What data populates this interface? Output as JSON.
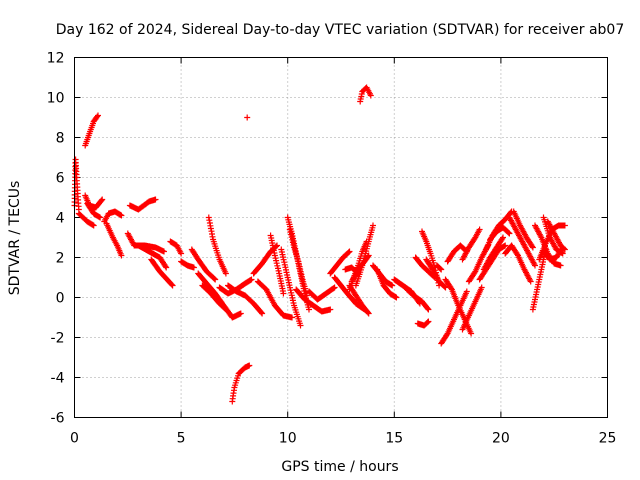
{
  "chart_data": {
    "type": "scatter",
    "title": "Day 162 of 2024, Sidereal Day-to-day VTEC variation (SDTVAR) for receiver ab07",
    "xlabel": "GPS time / hours",
    "ylabel": "SDTVAR / TECUs",
    "xlim": [
      0,
      25
    ],
    "ylim": [
      -6,
      12
    ],
    "xticks": [
      0,
      5,
      10,
      15,
      20,
      25
    ],
    "yticks": [
      -6,
      -4,
      -2,
      0,
      2,
      4,
      6,
      8,
      10,
      12
    ],
    "grid": true,
    "marker": "+",
    "series_color": "#ff0000",
    "track_segments": [
      [
        [
          0.0,
          4.6
        ],
        [
          0.05,
          6.9
        ],
        [
          0.1,
          6.0
        ],
        [
          0.2,
          4.4
        ]
      ],
      [
        [
          0.5,
          7.6
        ],
        [
          0.7,
          8.2
        ],
        [
          0.9,
          8.8
        ],
        [
          1.1,
          9.1
        ]
      ],
      [
        [
          0.5,
          5.1
        ],
        [
          0.7,
          4.6
        ],
        [
          1.0,
          4.5
        ],
        [
          1.3,
          4.9
        ]
      ],
      [
        [
          0.6,
          4.7
        ],
        [
          0.9,
          4.2
        ],
        [
          1.2,
          4.0
        ]
      ],
      [
        [
          0.2,
          4.2
        ],
        [
          0.6,
          3.8
        ],
        [
          0.9,
          3.6
        ]
      ],
      [
        [
          1.4,
          3.8
        ],
        [
          1.6,
          4.2
        ],
        [
          1.9,
          4.3
        ],
        [
          2.2,
          4.1
        ]
      ],
      [
        [
          1.5,
          3.7
        ],
        [
          1.8,
          3.0
        ],
        [
          2.0,
          2.6
        ],
        [
          2.2,
          2.1
        ]
      ],
      [
        [
          2.6,
          4.6
        ],
        [
          3.0,
          4.4
        ],
        [
          3.5,
          4.8
        ],
        [
          3.8,
          4.9
        ]
      ],
      [
        [
          2.5,
          3.2
        ],
        [
          2.8,
          2.6
        ],
        [
          3.3,
          2.6
        ],
        [
          3.8,
          2.5
        ],
        [
          4.2,
          2.3
        ]
      ],
      [
        [
          3.0,
          2.6
        ],
        [
          3.5,
          2.3
        ],
        [
          4.0,
          2.0
        ],
        [
          4.3,
          1.5
        ]
      ],
      [
        [
          3.6,
          1.9
        ],
        [
          4.0,
          1.3
        ],
        [
          4.6,
          0.6
        ]
      ],
      [
        [
          4.5,
          2.8
        ],
        [
          4.8,
          2.6
        ],
        [
          5.0,
          2.2
        ]
      ],
      [
        [
          5.0,
          1.8
        ],
        [
          5.3,
          1.6
        ],
        [
          5.6,
          1.5
        ]
      ],
      [
        [
          5.5,
          2.4
        ],
        [
          5.8,
          1.9
        ],
        [
          6.2,
          1.3
        ],
        [
          6.6,
          0.9
        ]
      ],
      [
        [
          6.3,
          4.0
        ],
        [
          6.5,
          2.9
        ],
        [
          6.8,
          1.9
        ],
        [
          7.1,
          1.2
        ]
      ],
      [
        [
          5.8,
          1.2
        ],
        [
          6.2,
          0.7
        ],
        [
          6.6,
          0.2
        ],
        [
          7.0,
          -0.4
        ],
        [
          7.4,
          -1.0
        ],
        [
          7.8,
          -0.8
        ]
      ],
      [
        [
          6.0,
          0.6
        ],
        [
          6.4,
          0.2
        ],
        [
          6.8,
          -0.3
        ],
        [
          7.2,
          -0.7
        ]
      ],
      [
        [
          6.8,
          0.5
        ],
        [
          7.2,
          0.2
        ],
        [
          7.6,
          0.4
        ],
        [
          8.0,
          0.7
        ],
        [
          8.3,
          0.9
        ]
      ],
      [
        [
          7.2,
          0.6
        ],
        [
          7.6,
          0.3
        ],
        [
          8.0,
          0.1
        ],
        [
          8.4,
          -0.3
        ],
        [
          8.8,
          -0.8
        ]
      ],
      [
        [
          7.4,
          -5.2
        ],
        [
          7.5,
          -4.5
        ],
        [
          7.7,
          -3.8
        ],
        [
          8.0,
          -3.5
        ],
        [
          8.2,
          -3.4
        ]
      ],
      [
        [
          8.1,
          9.0
        ],
        [
          8.1,
          9.0
        ]
      ],
      [
        [
          8.4,
          1.2
        ],
        [
          8.8,
          1.7
        ],
        [
          9.2,
          2.3
        ],
        [
          9.5,
          2.6
        ]
      ],
      [
        [
          9.2,
          3.1
        ],
        [
          9.4,
          2.1
        ],
        [
          9.6,
          1.2
        ],
        [
          9.8,
          0.2
        ]
      ],
      [
        [
          8.6,
          0.8
        ],
        [
          9.0,
          0.4
        ],
        [
          9.4,
          -0.4
        ],
        [
          9.8,
          -0.9
        ],
        [
          10.2,
          -1.0
        ]
      ],
      [
        [
          9.7,
          2.4
        ],
        [
          10.0,
          1.0
        ],
        [
          10.3,
          -0.4
        ],
        [
          10.6,
          -1.4
        ]
      ],
      [
        [
          10.0,
          4.0
        ],
        [
          10.2,
          3.2
        ],
        [
          10.4,
          2.2
        ],
        [
          10.6,
          1.2
        ],
        [
          10.8,
          0.2
        ],
        [
          11.0,
          -0.6
        ]
      ],
      [
        [
          10.1,
          3.4
        ],
        [
          10.3,
          2.5
        ],
        [
          10.5,
          1.8
        ],
        [
          10.7,
          0.9
        ],
        [
          10.9,
          0.1
        ]
      ],
      [
        [
          10.4,
          0.4
        ],
        [
          10.8,
          -0.1
        ],
        [
          11.2,
          -0.4
        ],
        [
          11.6,
          -0.7
        ],
        [
          12.0,
          -0.6
        ]
      ],
      [
        [
          11.0,
          0.3
        ],
        [
          11.4,
          -0.1
        ],
        [
          11.8,
          0.2
        ],
        [
          12.2,
          0.5
        ]
      ],
      [
        [
          12.2,
          1.0
        ],
        [
          12.5,
          0.6
        ],
        [
          12.8,
          0.2
        ],
        [
          13.2,
          -0.3
        ],
        [
          13.6,
          -0.6
        ]
      ],
      [
        [
          12.0,
          1.2
        ],
        [
          12.3,
          1.6
        ],
        [
          12.6,
          2.0
        ],
        [
          12.9,
          2.3
        ]
      ],
      [
        [
          12.9,
          0.4
        ],
        [
          13.1,
          1.0
        ],
        [
          13.3,
          1.6
        ],
        [
          13.5,
          2.3
        ],
        [
          13.7,
          2.8
        ]
      ],
      [
        [
          13.0,
          0.8
        ],
        [
          13.3,
          1.4
        ],
        [
          13.6,
          1.8
        ],
        [
          13.8,
          2.1
        ]
      ],
      [
        [
          13.2,
          0.6
        ],
        [
          13.5,
          1.6
        ],
        [
          13.8,
          2.8
        ],
        [
          14.0,
          3.6
        ]
      ],
      [
        [
          12.7,
          1.4
        ],
        [
          13.0,
          1.5
        ],
        [
          13.3,
          1.2
        ]
      ],
      [
        [
          12.9,
          0.6
        ],
        [
          13.2,
          0.1
        ],
        [
          13.5,
          -0.4
        ],
        [
          13.8,
          -0.8
        ]
      ],
      [
        [
          13.4,
          9.8
        ],
        [
          13.5,
          10.3
        ],
        [
          13.7,
          10.5
        ],
        [
          13.9,
          10.1
        ]
      ],
      [
        [
          14.0,
          1.6
        ],
        [
          14.3,
          1.2
        ],
        [
          14.6,
          0.8
        ],
        [
          14.9,
          0.6
        ]
      ],
      [
        [
          14.2,
          1.4
        ],
        [
          14.5,
          0.6
        ],
        [
          14.8,
          0.2
        ],
        [
          15.1,
          0.0
        ]
      ],
      [
        [
          15.0,
          0.9
        ],
        [
          15.4,
          0.6
        ],
        [
          15.8,
          0.3
        ],
        [
          16.2,
          -0.3
        ]
      ],
      [
        [
          15.6,
          0.4
        ],
        [
          15.9,
          0.1
        ],
        [
          16.3,
          -0.2
        ],
        [
          16.6,
          -0.6
        ]
      ],
      [
        [
          16.1,
          -1.3
        ],
        [
          16.4,
          -1.4
        ],
        [
          16.6,
          -1.2
        ]
      ],
      [
        [
          16.0,
          2.0
        ],
        [
          16.3,
          1.6
        ],
        [
          16.6,
          1.3
        ],
        [
          16.9,
          1.0
        ]
      ],
      [
        [
          16.3,
          3.3
        ],
        [
          16.5,
          2.8
        ],
        [
          16.7,
          2.2
        ],
        [
          16.9,
          1.5
        ],
        [
          17.1,
          0.6
        ]
      ],
      [
        [
          16.5,
          1.9
        ],
        [
          16.8,
          1.4
        ],
        [
          17.1,
          0.8
        ],
        [
          17.4,
          0.5
        ]
      ],
      [
        [
          17.0,
          1.6
        ],
        [
          17.2,
          1.4
        ]
      ],
      [
        [
          17.5,
          1.8
        ],
        [
          17.8,
          2.3
        ],
        [
          18.1,
          2.6
        ],
        [
          18.4,
          2.3
        ]
      ],
      [
        [
          17.2,
          -2.3
        ],
        [
          17.5,
          -1.8
        ],
        [
          17.8,
          -1.1
        ],
        [
          18.1,
          -0.4
        ],
        [
          18.4,
          0.3
        ]
      ],
      [
        [
          17.4,
          0.9
        ],
        [
          17.7,
          0.4
        ],
        [
          18.0,
          -0.4
        ],
        [
          18.3,
          -1.1
        ],
        [
          18.6,
          -1.8
        ]
      ],
      [
        [
          18.2,
          -1.6
        ],
        [
          18.5,
          -0.9
        ],
        [
          18.8,
          -0.2
        ],
        [
          19.1,
          0.5
        ]
      ],
      [
        [
          18.2,
          1.9
        ],
        [
          18.5,
          2.5
        ],
        [
          18.8,
          3.0
        ],
        [
          19.0,
          3.4
        ]
      ],
      [
        [
          18.5,
          0.8
        ],
        [
          18.8,
          1.3
        ],
        [
          19.1,
          2.0
        ],
        [
          19.4,
          2.6
        ]
      ],
      [
        [
          19.0,
          0.9
        ],
        [
          19.3,
          1.4
        ],
        [
          19.6,
          1.9
        ],
        [
          19.9,
          2.4
        ],
        [
          20.2,
          2.6
        ]
      ],
      [
        [
          19.2,
          1.4
        ],
        [
          19.5,
          2.0
        ],
        [
          19.8,
          2.5
        ],
        [
          20.1,
          3.0
        ]
      ],
      [
        [
          19.3,
          2.4
        ],
        [
          19.6,
          3.1
        ],
        [
          19.9,
          3.6
        ],
        [
          20.2,
          3.9
        ],
        [
          20.5,
          4.3
        ]
      ],
      [
        [
          19.5,
          2.9
        ],
        [
          19.8,
          3.3
        ],
        [
          20.1,
          3.5
        ],
        [
          20.4,
          3.2
        ]
      ],
      [
        [
          20.2,
          2.2
        ],
        [
          20.5,
          2.6
        ],
        [
          20.8,
          2.1
        ],
        [
          21.1,
          1.4
        ],
        [
          21.4,
          0.8
        ]
      ],
      [
        [
          20.4,
          4.0
        ],
        [
          20.7,
          3.4
        ],
        [
          21.0,
          2.8
        ],
        [
          21.3,
          2.2
        ],
        [
          21.6,
          1.6
        ]
      ],
      [
        [
          20.6,
          4.3
        ],
        [
          20.9,
          3.6
        ],
        [
          21.2,
          3.0
        ],
        [
          21.5,
          2.5
        ]
      ],
      [
        [
          21.5,
          -0.6
        ],
        [
          21.7,
          0.4
        ],
        [
          21.9,
          1.4
        ],
        [
          22.1,
          2.4
        ]
      ],
      [
        [
          21.6,
          3.6
        ],
        [
          21.9,
          3.0
        ],
        [
          22.2,
          2.2
        ],
        [
          22.5,
          1.7
        ],
        [
          22.8,
          1.6
        ]
      ],
      [
        [
          21.8,
          1.9
        ],
        [
          22.1,
          2.7
        ],
        [
          22.4,
          3.4
        ],
        [
          22.7,
          3.6
        ],
        [
          23.0,
          3.6
        ]
      ],
      [
        [
          22.0,
          4.0
        ],
        [
          22.3,
          3.0
        ],
        [
          22.6,
          2.4
        ],
        [
          22.9,
          2.2
        ]
      ],
      [
        [
          22.2,
          3.8
        ],
        [
          22.5,
          3.2
        ],
        [
          22.8,
          2.6
        ],
        [
          23.0,
          2.4
        ]
      ],
      [
        [
          22.0,
          2.3
        ],
        [
          22.3,
          1.9
        ],
        [
          22.6,
          2.0
        ],
        [
          22.9,
          2.5
        ]
      ]
    ]
  }
}
